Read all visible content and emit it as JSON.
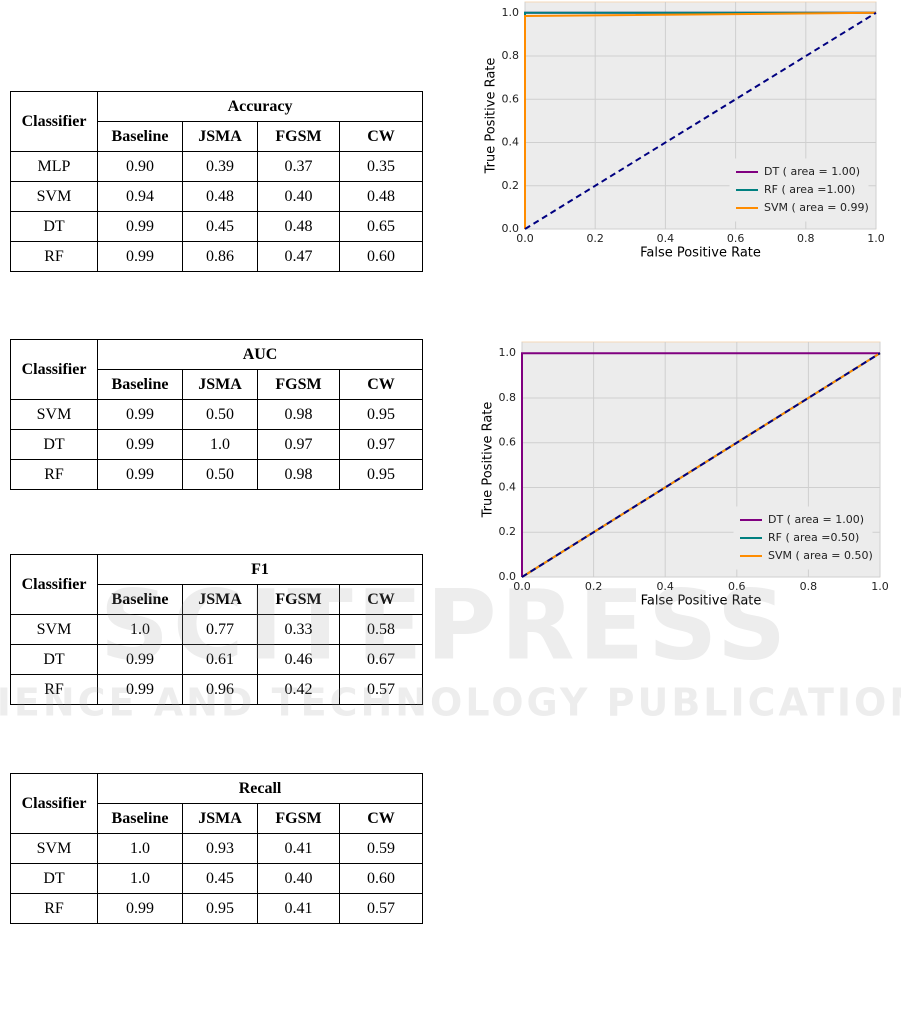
{
  "tables": [
    {
      "header": "Classifier",
      "metric": "Accuracy",
      "columns": [
        "Baseline",
        "JSMA",
        "FGSM",
        "CW"
      ],
      "rows": [
        [
          "MLP",
          "0.90",
          "0.39",
          "0.37",
          "0.35"
        ],
        [
          "SVM",
          "0.94",
          "0.48",
          "0.40",
          "0.48"
        ],
        [
          "DT",
          "0.99",
          "0.45",
          "0.48",
          "0.65"
        ],
        [
          "RF",
          "0.99",
          "0.86",
          "0.47",
          "0.60"
        ]
      ]
    },
    {
      "header": "Classifier",
      "metric": "AUC",
      "columns": [
        "Baseline",
        "JSMA",
        "FGSM",
        "CW"
      ],
      "rows": [
        [
          "SVM",
          "0.99",
          "0.50",
          "0.98",
          "0.95"
        ],
        [
          "DT",
          "0.99",
          "1.0",
          "0.97",
          "0.97"
        ],
        [
          "RF",
          "0.99",
          "0.50",
          "0.98",
          "0.95"
        ]
      ]
    },
    {
      "header": "Classifier",
      "metric": "F1",
      "columns": [
        "Baseline",
        "JSMA",
        "FGSM",
        "CW"
      ],
      "rows": [
        [
          "SVM",
          "1.0",
          "0.77",
          "0.33",
          "0.58"
        ],
        [
          "DT",
          "0.99",
          "0.61",
          "0.46",
          "0.67"
        ],
        [
          "RF",
          "0.99",
          "0.96",
          "0.42",
          "0.57"
        ]
      ]
    },
    {
      "header": "Classifier",
      "metric": "Recall",
      "columns": [
        "Baseline",
        "JSMA",
        "FGSM",
        "CW"
      ],
      "rows": [
        [
          "SVM",
          "1.0",
          "0.93",
          "0.41",
          "0.59"
        ],
        [
          "DT",
          "1.0",
          "0.45",
          "0.40",
          "0.60"
        ],
        [
          "RF",
          "0.99",
          "0.95",
          "0.41",
          "0.57"
        ]
      ]
    }
  ],
  "chart_data": [
    {
      "type": "line",
      "x_label": "False Positive Rate",
      "y_label": "True Positive Rate",
      "xlim": [
        0,
        1
      ],
      "ylim": [
        0,
        1.05
      ],
      "xticks": [
        {
          "value": 0,
          "label": "0.0"
        },
        0.2,
        0.4,
        0.6,
        0.8,
        {
          "value": 1,
          "label": "1.0"
        }
      ],
      "yticks": [
        {
          "value": 0,
          "label": "0.0"
        },
        0.2,
        0.4,
        0.6,
        0.8,
        {
          "value": 1,
          "label": "1.0"
        }
      ],
      "grid": true,
      "legend": "lower right",
      "x": [
        0,
        0,
        1
      ],
      "series": [
        {
          "name": "DT ( area = 1.00)",
          "color": "#800080",
          "values": [
            0,
            1,
            1
          ]
        },
        {
          "name": "RF ( area =1.00)",
          "color": "#008080",
          "values": [
            0,
            1,
            1
          ]
        },
        {
          "name": "SVM ( area = 0.99)",
          "color": "#ff8c00",
          "values": [
            0,
            0.985,
            1
          ]
        }
      ],
      "reference_line": {
        "x": [
          0,
          1
        ],
        "values": [
          0,
          1
        ],
        "color": "#000080",
        "dashed": true
      }
    },
    {
      "type": "line",
      "x_label": "False Positive Rate",
      "y_label": "True Positive Rate",
      "xlim": [
        0,
        1
      ],
      "ylim": [
        0,
        1.05
      ],
      "xticks": [
        {
          "value": 0,
          "label": "0.0"
        },
        0.2,
        0.4,
        0.6,
        0.8,
        {
          "value": 1,
          "label": "1.0"
        }
      ],
      "yticks": [
        {
          "value": 0,
          "label": "0.0"
        },
        0.2,
        0.4,
        0.6,
        0.8,
        {
          "value": 1,
          "label": "1.0"
        }
      ],
      "grid": true,
      "legend": "lower right",
      "x": [
        0,
        0,
        1
      ],
      "series": [
        {
          "name": "DT ( area = 1.00)",
          "color": "#800080",
          "values": [
            0,
            1,
            1
          ]
        },
        {
          "name": "RF ( area =0.50)",
          "color": "#008080",
          "values": [
            0,
            0,
            1
          ]
        },
        {
          "name": "SVM ( area = 0.50)",
          "color": "#ff8c00",
          "values": [
            0,
            0,
            1
          ]
        }
      ],
      "reference_line": {
        "x": [
          0,
          1
        ],
        "values": [
          0,
          1
        ],
        "color": "#000080",
        "dashed": true
      }
    }
  ],
  "watermark": {
    "title": "SCITEPRESS",
    "subtitle": "SCIENCE AND TECHNOLOGY PUBLICATIONS"
  }
}
